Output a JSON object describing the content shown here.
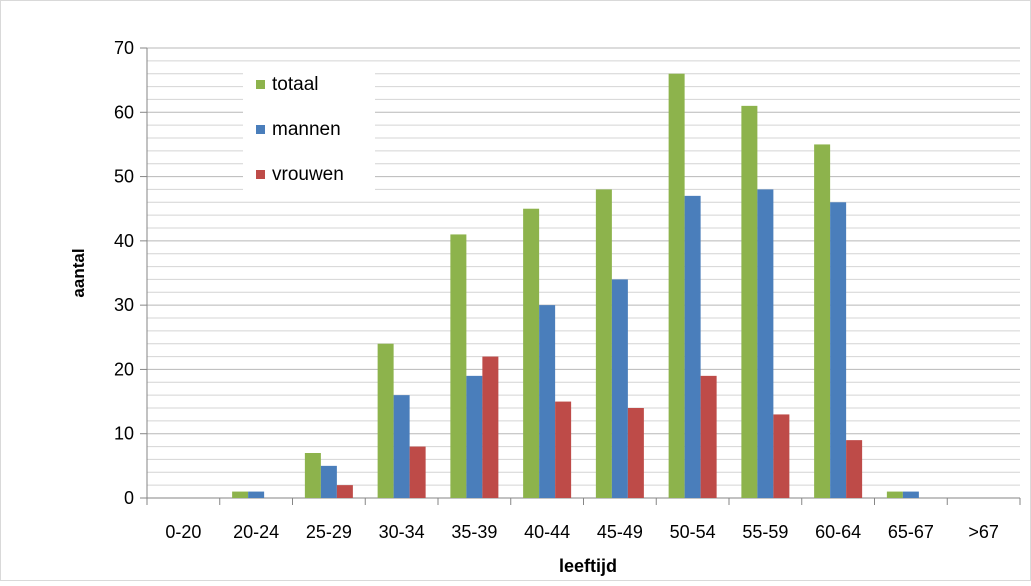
{
  "chart_data": {
    "type": "bar",
    "xlabel": "leeftijd",
    "ylabel": "aantal",
    "ylim": [
      0,
      70
    ],
    "y_ticks": [
      0,
      10,
      20,
      30,
      40,
      50,
      60,
      70
    ],
    "minor_grid_step": 2,
    "grid": true,
    "legend_position": "top-left",
    "categories": [
      "0-20",
      "20-24",
      "25-29",
      "30-34",
      "35-39",
      "40-44",
      "45-49",
      "50-54",
      "55-59",
      "60-64",
      "65-67",
      ">67"
    ],
    "series": [
      {
        "name": "totaal",
        "color": "#8db34c",
        "values": [
          0,
          1,
          7,
          24,
          41,
          45,
          48,
          66,
          61,
          55,
          1,
          0
        ]
      },
      {
        "name": "mannen",
        "color": "#4a7ebb",
        "values": [
          0,
          1,
          5,
          16,
          19,
          30,
          34,
          47,
          48,
          46,
          1,
          0
        ]
      },
      {
        "name": "vrouwen",
        "color": "#be4b48",
        "values": [
          0,
          0,
          2,
          8,
          22,
          15,
          14,
          19,
          13,
          9,
          0,
          0
        ]
      }
    ]
  }
}
